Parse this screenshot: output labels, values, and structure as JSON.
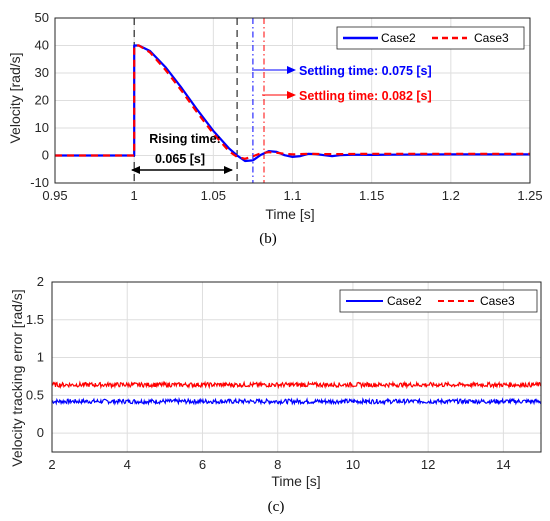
{
  "colors": {
    "case2": "#0000ff",
    "case3": "#ff0000",
    "grid": "#dedede",
    "axis": "#262626"
  },
  "chart_data": [
    {
      "type": "line",
      "panel": "(b)",
      "xlabel": "Time [s]",
      "ylabel": "Velocity [rad/s]",
      "xlim": [
        0.95,
        1.25
      ],
      "ylim": [
        -10,
        50
      ],
      "xticks": [
        "0.95",
        "1",
        "1.05",
        "1.1",
        "1.15",
        "1.2",
        "1.25"
      ],
      "yticks": [
        "-10",
        "0",
        "10",
        "20",
        "30",
        "40",
        "50"
      ],
      "grid": true,
      "legend": "top-right",
      "series": [
        {
          "name": "Case2",
          "x": [
            0.95,
            1.0,
            1.0,
            1.003,
            1.01,
            1.02,
            1.03,
            1.04,
            1.05,
            1.06,
            1.065,
            1.07,
            1.075,
            1.08,
            1.085,
            1.09,
            1.095,
            1.1,
            1.105,
            1.11,
            1.115,
            1.12,
            1.125,
            1.13,
            1.14,
            1.15,
            1.16,
            1.2,
            1.25
          ],
          "y": [
            0,
            0,
            40,
            40.0,
            38.0,
            32.0,
            24.5,
            16.5,
            9.0,
            2.5,
            0.0,
            -2.0,
            -1.8,
            0.2,
            1.6,
            1.3,
            0.1,
            -0.5,
            -0.2,
            0.6,
            0.5,
            0.1,
            -0.2,
            0.1,
            0.3,
            0.2,
            0.3,
            0.4,
            0.4
          ]
        },
        {
          "name": "Case3",
          "x": [
            0.95,
            1.0,
            1.0,
            1.003,
            1.01,
            1.02,
            1.03,
            1.04,
            1.05,
            1.06,
            1.065,
            1.07,
            1.075,
            1.08,
            1.085,
            1.09,
            1.095,
            1.1,
            1.11,
            1.12,
            1.13,
            1.15,
            1.2,
            1.25
          ],
          "y": [
            0,
            0,
            40,
            40.0,
            37.5,
            31.0,
            23.5,
            15.5,
            8.0,
            1.5,
            -0.5,
            -1.2,
            -0.3,
            0.8,
            1.2,
            1.0,
            0.6,
            0.4,
            0.6,
            0.5,
            0.5,
            0.6,
            0.6,
            0.6
          ]
        }
      ],
      "vlines": [
        {
          "x": 1.0,
          "color": "#000000",
          "style": "dash"
        },
        {
          "x": 1.065,
          "color": "#000000",
          "style": "dash"
        },
        {
          "x": 1.075,
          "color": "#0000ff",
          "style": "dashdot"
        },
        {
          "x": 1.082,
          "color": "#ff0000",
          "style": "dashdot"
        }
      ],
      "annotations": {
        "rising_title": "Rising time:",
        "rising_value": "0.065 [s]",
        "settling_case2": "Settling time: 0.075 [s]",
        "settling_case3": "Settling time: 0.082 [s]"
      }
    },
    {
      "type": "line",
      "panel": "(c)",
      "xlabel": "Time [s]",
      "ylabel": "Velocity tracking error [rad/s]",
      "xlim": [
        2,
        15
      ],
      "ylim": [
        -0.25,
        2
      ],
      "xticks": [
        "2",
        "4",
        "6",
        "8",
        "10",
        "12",
        "14"
      ],
      "yticks": [
        "0",
        "0.5",
        "1",
        "1.5",
        "2"
      ],
      "grid": true,
      "legend": "top-right",
      "series": [
        {
          "name": "Case2",
          "mean": 0.42,
          "noise_band": 0.03
        },
        {
          "name": "Case3",
          "mean": 0.64,
          "noise_band": 0.03
        }
      ]
    }
  ]
}
